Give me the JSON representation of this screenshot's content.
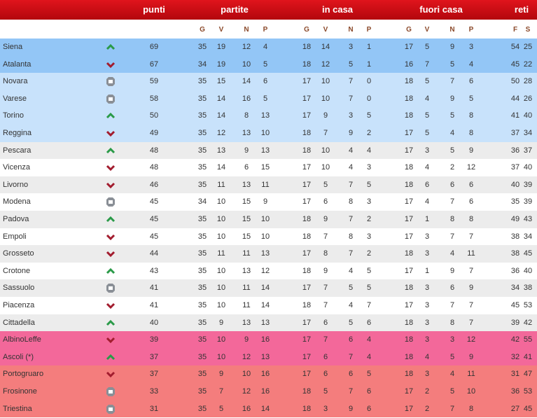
{
  "table": {
    "groups": [
      "punti",
      "partite",
      "in casa",
      "fuori casa",
      "reti"
    ],
    "subheaders": [
      "G",
      "V",
      "N",
      "P",
      "G",
      "V",
      "N",
      "P",
      "G",
      "V",
      "N",
      "P",
      "F",
      "S"
    ],
    "rows": [
      {
        "team": "Siena",
        "trend": "up",
        "color": "#93c6f6",
        "points": 69,
        "cells": [
          35,
          19,
          12,
          4,
          18,
          14,
          3,
          1,
          17,
          5,
          9,
          3,
          54,
          25
        ]
      },
      {
        "team": "Atalanta",
        "trend": "down",
        "color": "#93c6f6",
        "points": 67,
        "cells": [
          34,
          19,
          10,
          5,
          18,
          12,
          5,
          1,
          16,
          7,
          5,
          4,
          45,
          22
        ]
      },
      {
        "team": "Novara",
        "trend": "same",
        "color": "#c8e2fb",
        "points": 59,
        "cells": [
          35,
          15,
          14,
          6,
          17,
          10,
          7,
          0,
          18,
          5,
          7,
          6,
          50,
          28
        ]
      },
      {
        "team": "Varese",
        "trend": "same",
        "color": "#c8e2fb",
        "points": 58,
        "cells": [
          35,
          14,
          16,
          5,
          17,
          10,
          7,
          0,
          18,
          4,
          9,
          5,
          44,
          26
        ]
      },
      {
        "team": "Torino",
        "trend": "up",
        "color": "#c8e2fb",
        "points": 50,
        "cells": [
          35,
          14,
          8,
          13,
          17,
          9,
          3,
          5,
          18,
          5,
          5,
          8,
          41,
          40
        ]
      },
      {
        "team": "Reggina",
        "trend": "down",
        "color": "#c8e2fb",
        "points": 49,
        "cells": [
          35,
          12,
          13,
          10,
          18,
          7,
          9,
          2,
          17,
          5,
          4,
          8,
          37,
          34
        ]
      },
      {
        "team": "Pescara",
        "trend": "up",
        "color": "#ececec",
        "points": 48,
        "cells": [
          35,
          13,
          9,
          13,
          18,
          10,
          4,
          4,
          17,
          3,
          5,
          9,
          36,
          37
        ]
      },
      {
        "team": "Vicenza",
        "trend": "down",
        "color": "#ffffff",
        "points": 48,
        "cells": [
          35,
          14,
          6,
          15,
          17,
          10,
          4,
          3,
          18,
          4,
          2,
          12,
          37,
          40
        ]
      },
      {
        "team": "Livorno",
        "trend": "down",
        "color": "#ececec",
        "points": 46,
        "cells": [
          35,
          11,
          13,
          11,
          17,
          5,
          7,
          5,
          18,
          6,
          6,
          6,
          40,
          39
        ]
      },
      {
        "team": "Modena",
        "trend": "same",
        "color": "#ffffff",
        "points": 45,
        "cells": [
          34,
          10,
          15,
          9,
          17,
          6,
          8,
          3,
          17,
          4,
          7,
          6,
          35,
          39
        ]
      },
      {
        "team": "Padova",
        "trend": "up",
        "color": "#ececec",
        "points": 45,
        "cells": [
          35,
          10,
          15,
          10,
          18,
          9,
          7,
          2,
          17,
          1,
          8,
          8,
          49,
          43
        ]
      },
      {
        "team": "Empoli",
        "trend": "down",
        "color": "#ffffff",
        "points": 45,
        "cells": [
          35,
          10,
          15,
          10,
          18,
          7,
          8,
          3,
          17,
          3,
          7,
          7,
          38,
          34
        ]
      },
      {
        "team": "Grosseto",
        "trend": "down",
        "color": "#ececec",
        "points": 44,
        "cells": [
          35,
          11,
          11,
          13,
          17,
          8,
          7,
          2,
          18,
          3,
          4,
          11,
          38,
          45
        ]
      },
      {
        "team": "Crotone",
        "trend": "up",
        "color": "#ffffff",
        "points": 43,
        "cells": [
          35,
          10,
          13,
          12,
          18,
          9,
          4,
          5,
          17,
          1,
          9,
          7,
          36,
          40
        ]
      },
      {
        "team": "Sassuolo",
        "trend": "same",
        "color": "#ececec",
        "points": 41,
        "cells": [
          35,
          10,
          11,
          14,
          17,
          7,
          5,
          5,
          18,
          3,
          6,
          9,
          34,
          38
        ]
      },
      {
        "team": "Piacenza",
        "trend": "down",
        "color": "#ffffff",
        "points": 41,
        "cells": [
          35,
          10,
          11,
          14,
          18,
          7,
          4,
          7,
          17,
          3,
          7,
          7,
          45,
          53
        ]
      },
      {
        "team": "Cittadella",
        "trend": "up",
        "color": "#ececec",
        "points": 40,
        "cells": [
          35,
          9,
          13,
          13,
          17,
          6,
          5,
          6,
          18,
          3,
          8,
          7,
          39,
          42
        ]
      },
      {
        "team": "AlbinoLeffe",
        "trend": "down",
        "color": "#f3689a",
        "points": 39,
        "cells": [
          35,
          10,
          9,
          16,
          17,
          7,
          6,
          4,
          18,
          3,
          3,
          12,
          42,
          55
        ]
      },
      {
        "team": "Ascoli  (*)",
        "trend": "up",
        "color": "#f3689a",
        "points": 37,
        "cells": [
          35,
          10,
          12,
          13,
          17,
          6,
          7,
          4,
          18,
          4,
          5,
          9,
          32,
          41
        ]
      },
      {
        "team": "Portogruaro",
        "trend": "down",
        "color": "#f47d7d",
        "points": 37,
        "cells": [
          35,
          9,
          10,
          16,
          17,
          6,
          6,
          5,
          18,
          3,
          4,
          11,
          31,
          47
        ]
      },
      {
        "team": "Frosinone",
        "trend": "same",
        "color": "#f47d7d",
        "points": 33,
        "cells": [
          35,
          7,
          12,
          16,
          18,
          5,
          7,
          6,
          17,
          2,
          5,
          10,
          36,
          53
        ]
      },
      {
        "team": "Triestina",
        "trend": "same",
        "color": "#f47d7d",
        "points": 31,
        "cells": [
          35,
          5,
          16,
          14,
          18,
          3,
          9,
          6,
          17,
          2,
          7,
          8,
          27,
          45
        ]
      }
    ]
  }
}
